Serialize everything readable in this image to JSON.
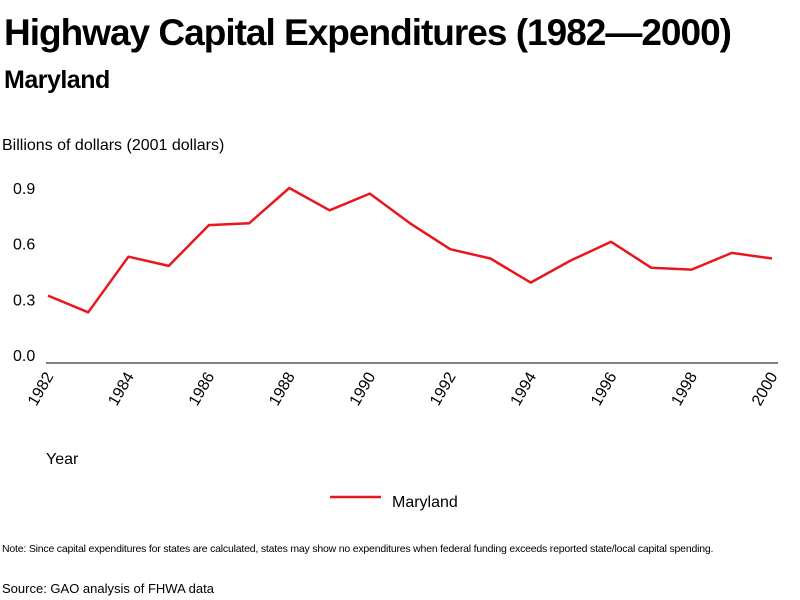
{
  "title": "Highway Capital Expenditures (1982—2000)",
  "subtitle": "Maryland",
  "note": "Note: Since capital expenditures for states are calculated, states may show no expenditures when federal funding exceeds reported state/local capital spending.",
  "source": "Source: GAO analysis of FHWA data",
  "chart_data": {
    "type": "line",
    "ylabel": "Billions of dollars (2001 dollars)",
    "xlabel": "Year",
    "ylim": [
      0,
      0.9
    ],
    "yticks": [
      "0.0",
      "0.3",
      "0.6",
      "0.9"
    ],
    "xticks": [
      "1982",
      "1984",
      "1986",
      "1988",
      "1990",
      "1992",
      "1994",
      "1996",
      "1998",
      "2000"
    ],
    "grid": false,
    "legend_position": "bottom-center",
    "series": [
      {
        "name": "Maryland",
        "color": "#e8161e",
        "x": [
          1982,
          1983,
          1984,
          1985,
          1986,
          1987,
          1988,
          1989,
          1990,
          1991,
          1992,
          1993,
          1994,
          1995,
          1996,
          1997,
          1998,
          1999,
          2000
        ],
        "values": [
          0.32,
          0.23,
          0.53,
          0.48,
          0.7,
          0.71,
          0.9,
          0.78,
          0.87,
          0.71,
          0.57,
          0.52,
          0.39,
          0.51,
          0.61,
          0.47,
          0.46,
          0.55,
          0.52
        ]
      }
    ]
  }
}
